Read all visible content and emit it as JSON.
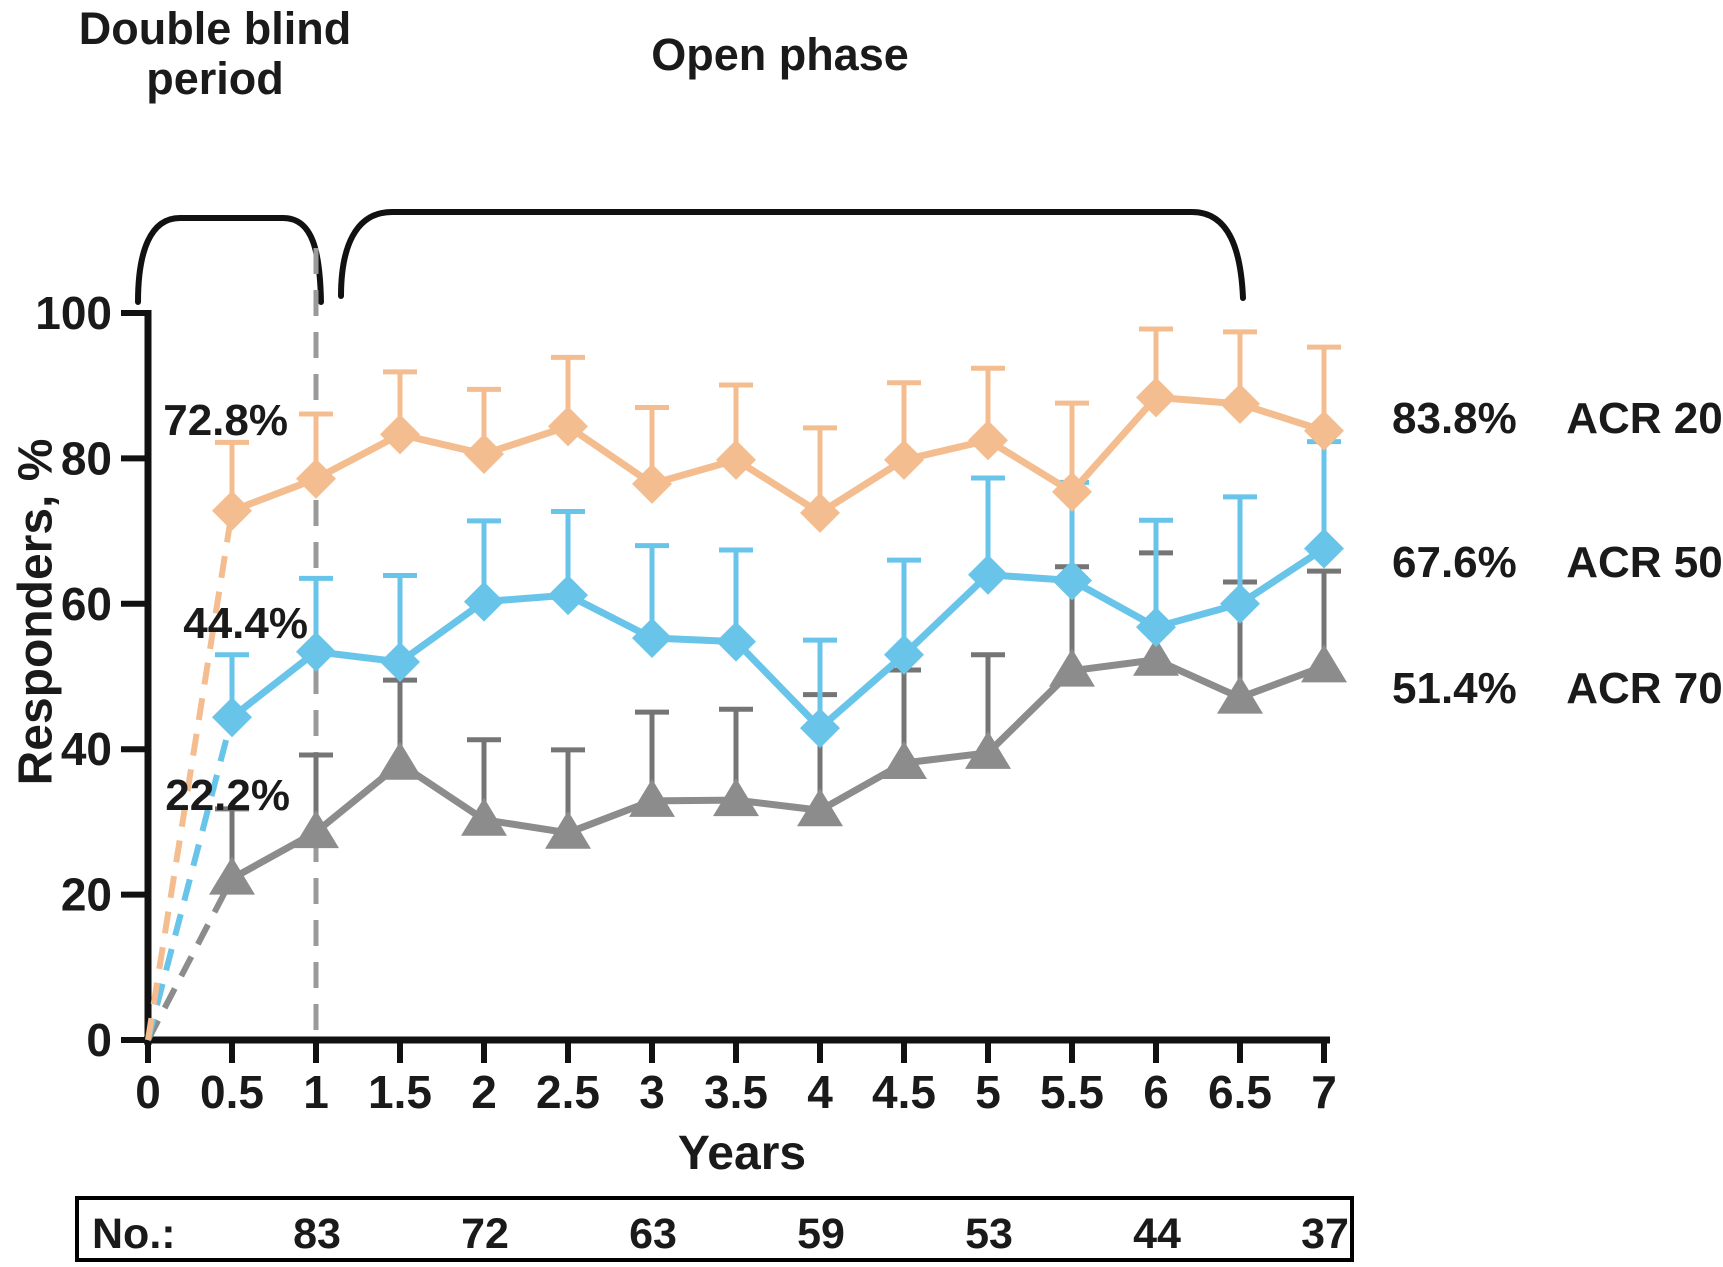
{
  "phases": {
    "double_blind": "Double blind period",
    "open": "Open phase"
  },
  "chart_data": {
    "type": "line",
    "title": "",
    "xlabel": "Years",
    "ylabel": "Responders, %",
    "xlim": [
      0,
      7
    ],
    "ylim": [
      0,
      100
    ],
    "grid": false,
    "xticks": [
      "0",
      "0.5",
      "1",
      "1.5",
      "2",
      "2.5",
      "3",
      "3.5",
      "4",
      "4.5",
      "5",
      "5.5",
      "6",
      "6.5",
      "7"
    ],
    "xtick_values": [
      0,
      0.5,
      1,
      1.5,
      2,
      2.5,
      3,
      3.5,
      4,
      4.5,
      5,
      5.5,
      6,
      6.5,
      7
    ],
    "yticks": [
      "0",
      "20",
      "40",
      "60",
      "80",
      "100"
    ],
    "ytick_values": [
      0,
      20,
      40,
      60,
      80,
      100
    ],
    "x": [
      0.5,
      1,
      1.5,
      2,
      2.5,
      3,
      3.5,
      4,
      4.5,
      5,
      5.5,
      6,
      6.5,
      7
    ],
    "dashed_vline_x": 1,
    "dashed_from_origin": true,
    "series": [
      {
        "name": "ACR 70",
        "marker": "triangle",
        "color": "#8c8c8c",
        "err_color": "#757575",
        "values": [
          22.2,
          28.6,
          38.0,
          30.3,
          28.5,
          32.9,
          33.0,
          31.6,
          38.1,
          39.5,
          50.8,
          52.3,
          47.1,
          51.4
        ],
        "err_top": [
          31.8,
          39.2,
          49.5,
          41.3,
          39.9,
          45.1,
          45.5,
          47.5,
          50.9,
          53.0,
          65.1,
          67.0,
          63.0,
          64.5
        ],
        "final_label": "51.4%"
      },
      {
        "name": "ACR 50",
        "marker": "diamond",
        "color": "#69c4e9",
        "err_color": "#69c4e9",
        "values": [
          44.4,
          53.4,
          52.0,
          60.3,
          61.2,
          55.3,
          54.8,
          42.9,
          53.0,
          64.0,
          63.2,
          56.8,
          60.0,
          67.6
        ],
        "err_top": [
          53.0,
          63.5,
          63.9,
          71.4,
          72.7,
          68.0,
          67.4,
          55.0,
          66.0,
          77.3,
          76.7,
          71.5,
          74.7,
          82.3
        ],
        "final_label": "67.6%"
      },
      {
        "name": "ACR 20",
        "marker": "diamond",
        "color": "#f4bd8f",
        "err_color": "#f4bd8f",
        "values": [
          72.8,
          77.2,
          83.3,
          80.6,
          84.4,
          76.5,
          79.8,
          72.5,
          79.8,
          82.5,
          75.4,
          88.4,
          87.5,
          83.8
        ],
        "err_top": [
          82.2,
          86.1,
          91.9,
          89.5,
          93.9,
          87.0,
          90.1,
          84.2,
          90.4,
          92.4,
          87.6,
          97.8,
          97.4,
          95.3
        ],
        "final_label": "83.8%"
      }
    ],
    "point_annotations": [
      {
        "text": "72.8%",
        "series": "ACR 20",
        "x": 0.5
      },
      {
        "text": "44.4%",
        "series": "ACR 50",
        "x": 0.5
      },
      {
        "text": "22.2%",
        "series": "ACR 70",
        "x": 0.5
      }
    ],
    "legend_position": "right"
  },
  "side_legend": [
    {
      "pct": "83.8%",
      "label": "ACR 20"
    },
    {
      "pct": "67.6%",
      "label": "ACR 50"
    },
    {
      "pct": "51.4%",
      "label": "ACR 70"
    }
  ],
  "counts_table": {
    "label": "No.:",
    "years": [
      1,
      2,
      3,
      4,
      5,
      6,
      7
    ],
    "values": [
      "83",
      "72",
      "63",
      "59",
      "53",
      "44",
      "37"
    ]
  }
}
